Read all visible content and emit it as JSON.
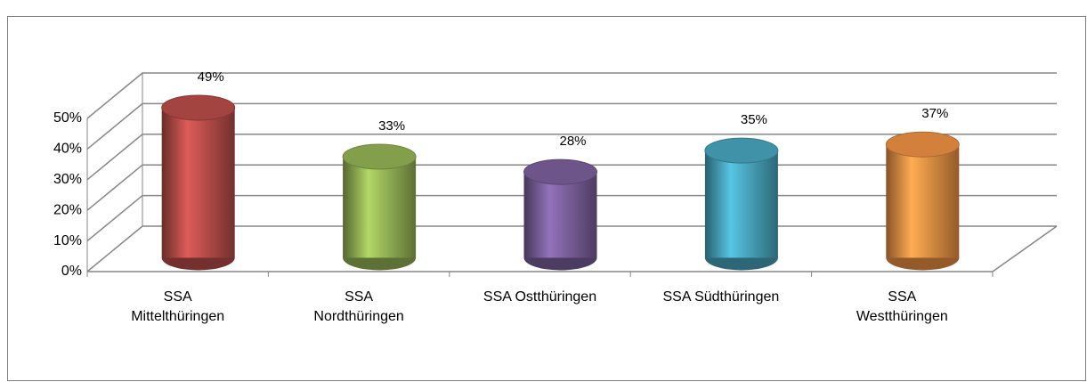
{
  "chart_data": {
    "type": "bar3d",
    "categories": [
      "SSA\nMittelthüringen",
      "SSA\nNordthüringen",
      "SSA Ostthüringen",
      "SSA Südthüringen",
      "SSA\nWestthüringen"
    ],
    "values": [
      49,
      33,
      28,
      35,
      37
    ],
    "value_labels": [
      "49%",
      "33%",
      "28%",
      "35%",
      "37%"
    ],
    "colors": [
      "#c0504d",
      "#9bbb59",
      "#8064a2",
      "#4bacc6",
      "#f79646"
    ],
    "ylim": [
      0,
      50
    ],
    "yticks": [
      {
        "value": 0,
        "label": "0%"
      },
      {
        "value": 10,
        "label": "10%"
      },
      {
        "value": 20,
        "label": "20%"
      },
      {
        "value": 30,
        "label": "30%"
      },
      {
        "value": 40,
        "label": "40%"
      },
      {
        "value": 50,
        "label": "50%"
      }
    ],
    "grid": true
  }
}
